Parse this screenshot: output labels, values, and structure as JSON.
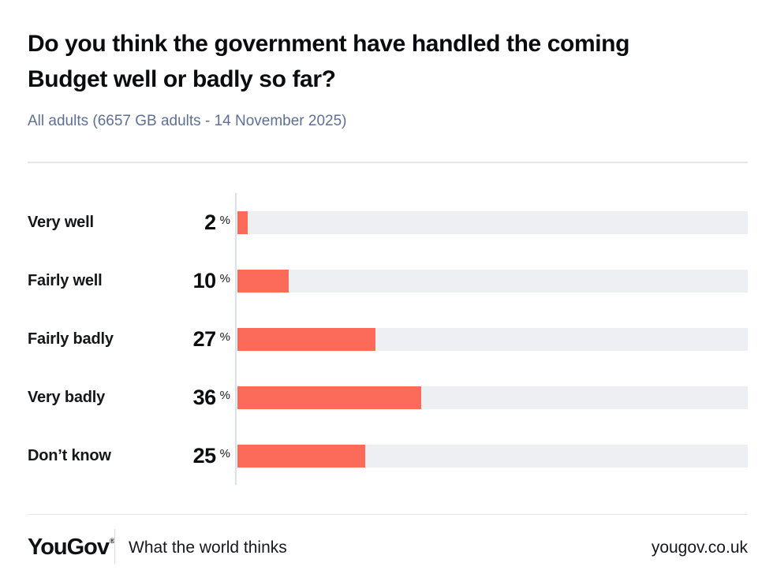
{
  "title_lines": [
    "Do you think the government have handled the coming",
    "Budget well or badly so far?"
  ],
  "subtitle": "All adults (6657 GB adults - 14 November 2025)",
  "colors": {
    "bar": "#FC6A5A",
    "bar_track": "#EDEFF3",
    "axis_line": "#DCE1E9",
    "subtitle_text": "#5E6F96"
  },
  "chart_data": {
    "type": "bar",
    "orientation": "horizontal",
    "title": "Do you think the government have handled the coming Budget well or badly so far?",
    "subtitle": "All adults (6657 GB adults - 14 November 2025)",
    "categories": [
      "Very well",
      "Fairly well",
      "Fairly badly",
      "Very badly",
      "Don’t know"
    ],
    "values": [
      2,
      10,
      27,
      36,
      25
    ],
    "unit": "%",
    "xlim": [
      0,
      100
    ],
    "grid": false,
    "legend": false,
    "value_labels": "left-of-bar"
  },
  "footer": {
    "logo_text": "YouGov",
    "registered_mark": "®",
    "tagline": "What the world thinks",
    "website": "yougov.co.uk"
  }
}
